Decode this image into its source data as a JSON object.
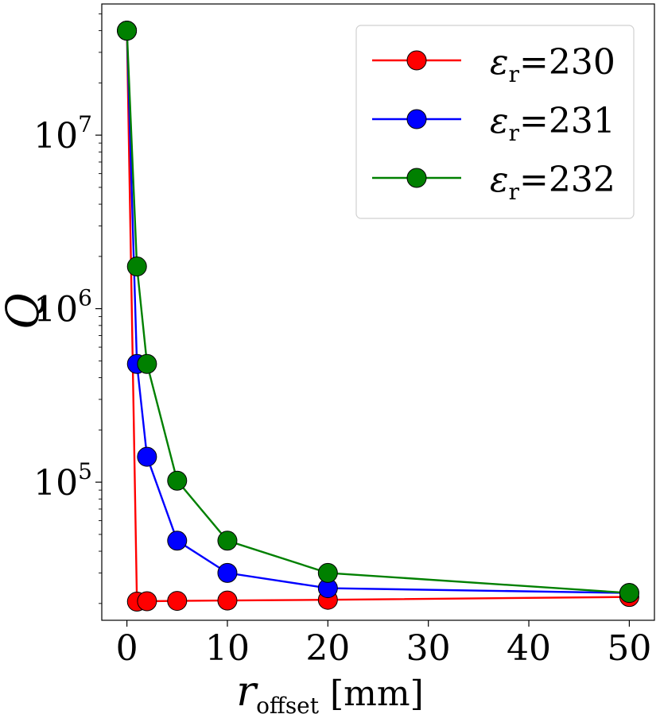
{
  "chart_data": {
    "type": "line",
    "xlabel": "r",
    "xlabel_subscript": "offset",
    "xlabel_unit": "[mm]",
    "ylabel": "Q",
    "y_scale": "log",
    "xlim": [
      -2.5,
      52.5
    ],
    "ylim": [
      16000,
      57000000
    ],
    "x_ticks": [
      0,
      10,
      20,
      30,
      40,
      50
    ],
    "y_ticks": [
      {
        "base": "10",
        "exp": "5",
        "value": 100000
      },
      {
        "base": "10",
        "exp": "6",
        "value": 1000000
      },
      {
        "base": "10",
        "exp": "7",
        "value": 10000000
      }
    ],
    "grid": false,
    "legend_position": "top-right",
    "x": [
      0,
      1,
      2,
      5,
      10,
      20,
      50
    ],
    "series": [
      {
        "name": "230",
        "legend_symbol": "ε",
        "legend_subscript": "r",
        "legend_eq": "=",
        "color": "#ff0000",
        "values": [
          40000000,
          20500,
          20600,
          20700,
          20800,
          21000,
          21800
        ]
      },
      {
        "name": "231",
        "legend_symbol": "ε",
        "legend_subscript": "r",
        "legend_eq": "=",
        "color": "#0000ff",
        "values": [
          40000000,
          480000,
          140000,
          46000,
          30000,
          24500,
          23000
        ]
      },
      {
        "name": "232",
        "legend_symbol": "ε",
        "legend_subscript": "r",
        "legend_eq": "=",
        "color": "#008000",
        "values": [
          40000000,
          1750000,
          480000,
          102000,
          46000,
          30000,
          23000
        ]
      }
    ]
  }
}
